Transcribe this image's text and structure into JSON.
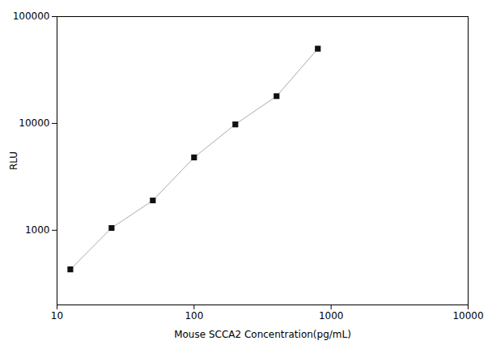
{
  "chart_data": {
    "type": "line",
    "x": [
      12.5,
      25,
      50,
      100,
      200,
      400,
      800
    ],
    "series": [
      {
        "type": "line",
        "color": "#aaaaaa",
        "values": [
          430,
          1050,
          1900,
          4800,
          9800,
          18000,
          50000
        ]
      },
      {
        "type": "scatter",
        "color": "#111111",
        "marker": "square",
        "values": [
          430,
          1050,
          1900,
          4800,
          9800,
          18000,
          50000
        ]
      }
    ],
    "xlabel": "Mouse SCCA2 Concentration(pg/mL)",
    "ylabel": "RLU",
    "log": true,
    "xlim": [
      10,
      10000
    ],
    "ylim": [
      200,
      100000
    ],
    "xticks": [
      10,
      100,
      1000,
      10000
    ],
    "yticks": [
      1000,
      10000,
      100000
    ],
    "grid": false
  }
}
